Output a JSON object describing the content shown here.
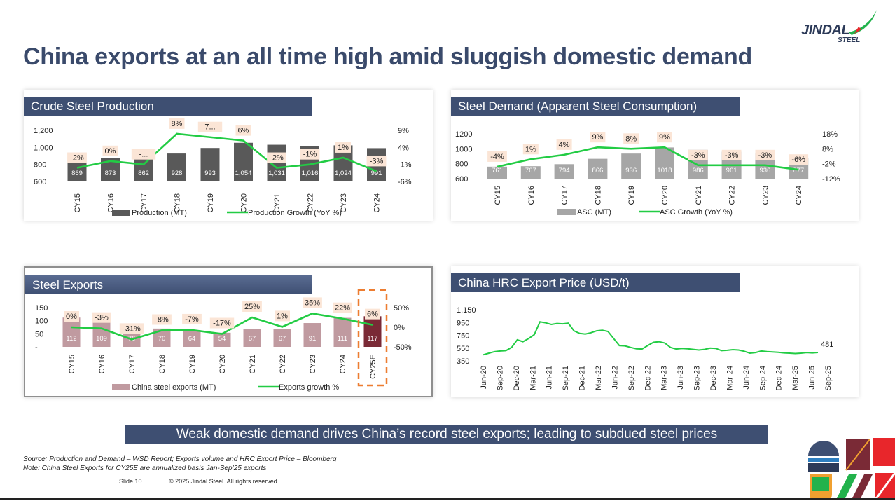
{
  "slide": {
    "title": "China exports at an all time high amid sluggish domestic demand",
    "logo_main": "JINDAL",
    "logo_sub": "STEEL",
    "banner": "Weak domestic demand drives China’s record steel exports; leading to subdued steel prices",
    "source_line1": "Source: Production and Demand – WSD Report; Exports volume  and HRC Export Price – Bloomberg",
    "source_line2": "Note: China Steel Exports for CY25E are annualized basis Jan-Sep’25 exports",
    "slide_number": "Slide 10",
    "copyright": "© 2025 Jindal Steel. All rights reserved.",
    "colors": {
      "header": "#3e4f72",
      "green": "#22cc44",
      "bar_dark": "#595959",
      "bar_grey": "#a6a6a6",
      "bar_pink": "#c09aa0",
      "bar_maroon": "#7a2a36",
      "label_box": "#fbe5d6",
      "highlight": "#ed7d31"
    }
  },
  "chart_data": [
    {
      "type": "bar",
      "title": "Crude Steel Production",
      "categories": [
        "CY15",
        "CY16",
        "CY17",
        "CY18",
        "CY19",
        "CY20",
        "CY21",
        "CY22",
        "CY23",
        "CY24"
      ],
      "series": [
        {
          "name": "Production (MT)",
          "axis": "left",
          "values": [
            869,
            873,
            862,
            928,
            993,
            1054,
            1031,
            1016,
            1024,
            991
          ],
          "labels": [
            "869",
            "873",
            "862",
            "928",
            "993",
            "1,054",
            "1,031",
            "1,016",
            "1,024",
            "991"
          ]
        },
        {
          "name": "Production Growth (YoY %)",
          "axis": "right",
          "kind": "line",
          "values": [
            -2,
            0,
            -1,
            8,
            7,
            6,
            -2,
            -1,
            1,
            -3
          ],
          "labels": [
            "-2%",
            "0%",
            "-...",
            "8%",
            "7...",
            "6%",
            "-2%",
            "-1%",
            "1%",
            "-3%"
          ]
        }
      ],
      "y_left": {
        "ticks": [
          "1,200",
          "1,000",
          "800",
          "600"
        ],
        "range": [
          600,
          1200
        ]
      },
      "y_right": {
        "ticks": [
          "9%",
          "4%",
          "-1%",
          "-6%"
        ],
        "range": [
          -6,
          9
        ]
      }
    },
    {
      "type": "bar",
      "title": "Steel Demand (Apparent Steel Consumption)",
      "categories": [
        "CY15",
        "CY16",
        "CY17",
        "CY18",
        "CY19",
        "CY20",
        "CY21",
        "CY22",
        "CY23",
        "CY24"
      ],
      "series": [
        {
          "name": "ASC (MT)",
          "axis": "left",
          "values": [
            761,
            767,
            794,
            866,
            936,
            1018,
            986,
            961,
            936,
            877
          ],
          "labels": [
            "761",
            "767",
            "794",
            "866",
            "936",
            "1018",
            "986",
            "961",
            "936",
            "877"
          ]
        },
        {
          "name": "ASC Growth (YoY %)",
          "axis": "right",
          "kind": "line",
          "values": [
            -4,
            1,
            4,
            9,
            8,
            9,
            -3,
            -3,
            -3,
            -6
          ],
          "labels": [
            "-4%",
            "1%",
            "4%",
            "9%",
            "8%",
            "9%",
            "-3%",
            "-3%",
            "-3%",
            "-6%"
          ]
        }
      ],
      "y_left": {
        "ticks": [
          "1200",
          "1000",
          "800",
          "600"
        ],
        "range": [
          600,
          1200
        ]
      },
      "y_right": {
        "ticks": [
          "18%",
          "8%",
          "-2%",
          "-12%"
        ],
        "range": [
          -12,
          18
        ]
      }
    },
    {
      "type": "bar",
      "title": "Steel Exports",
      "categories": [
        "CY15",
        "CY16",
        "CY17",
        "CY18",
        "CY19",
        "CY20",
        "CY21",
        "CY22",
        "CY23",
        "CY24",
        "CY25E"
      ],
      "series": [
        {
          "name": "China steel exports (MT)",
          "axis": "left",
          "values": [
            112,
            109,
            76,
            70,
            64,
            54,
            67,
            67,
            91,
            111,
            117
          ],
          "labels": [
            "112",
            "109",
            "76",
            "70",
            "64",
            "54",
            "67",
            "67",
            "91",
            "111",
            "117"
          ]
        },
        {
          "name": "Exports growth %",
          "axis": "right",
          "kind": "line",
          "values": [
            0,
            -3,
            -31,
            -8,
            -7,
            -17,
            25,
            1,
            35,
            22,
            6
          ],
          "labels": [
            "0%",
            "-3%",
            "-31%",
            "-8%",
            "-7%",
            "-17%",
            "25%",
            "1%",
            "35%",
            "22%",
            "6%"
          ]
        }
      ],
      "y_left": {
        "ticks": [
          "150",
          "100",
          "50",
          "-"
        ],
        "range": [
          0,
          150
        ]
      },
      "y_right": {
        "ticks": [
          "50%",
          "0%",
          "-50%"
        ],
        "range": [
          -50,
          50
        ]
      },
      "highlight_category": "CY25E"
    },
    {
      "type": "line",
      "title": "China HRC Export Price (USD/t)",
      "x_ticks": [
        "Jun-20",
        "Sep-20",
        "Dec-20",
        "Mar-21",
        "Jun-21",
        "Sep-21",
        "Dec-21",
        "Mar-22",
        "Jun-22",
        "Sep-22",
        "Dec-22",
        "Mar-23",
        "Jun-23",
        "Sep-23",
        "Dec-23",
        "Mar-24",
        "Jun-24",
        "Sep-24",
        "Dec-24",
        "Mar-25",
        "Jun-25",
        "Sep-25"
      ],
      "y_ticks": [
        "1,150",
        "950",
        "750",
        "550",
        "350"
      ],
      "ylim": [
        350,
        1150
      ],
      "values": [
        445,
        470,
        495,
        505,
        510,
        560,
        680,
        650,
        700,
        760,
        960,
        945,
        920,
        935,
        930,
        940,
        820,
        780,
        770,
        790,
        820,
        830,
        810,
        700,
        590,
        585,
        560,
        540,
        535,
        590,
        640,
        650,
        630,
        560,
        535,
        545,
        540,
        530,
        520,
        530,
        550,
        545,
        510,
        515,
        525,
        520,
        500,
        470,
        480,
        505,
        495,
        490,
        485,
        475,
        470,
        465,
        470,
        480,
        475,
        481
      ],
      "last_label": "481"
    }
  ]
}
